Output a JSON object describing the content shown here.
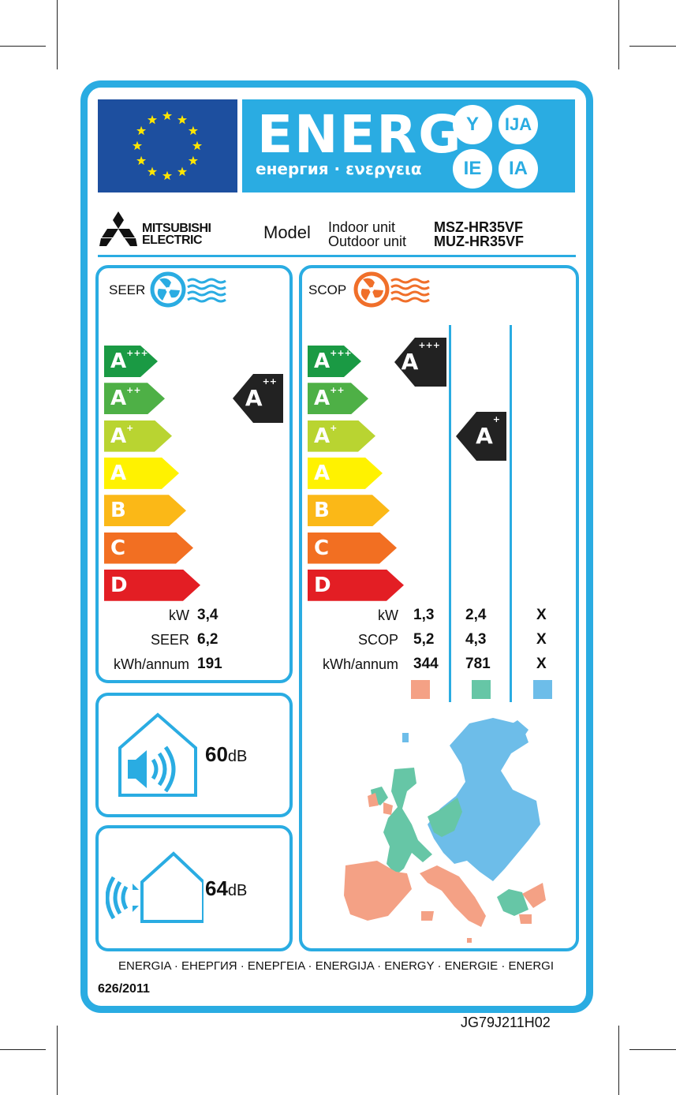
{
  "header": {
    "energy_word": "ENERG",
    "energy_sub": "енергия · ενεργεια",
    "lang_badges": [
      "Y",
      "IJA",
      "IE",
      "IA"
    ]
  },
  "brand": {
    "line1": "MITSUBISHI",
    "line2": "ELECTRIC"
  },
  "model": {
    "label": "Model",
    "indoor_label": "Indoor unit",
    "indoor_value": "MSZ-HR35VF",
    "outdoor_label": "Outdoor unit",
    "outdoor_value": "MUZ-HR35VF"
  },
  "classes": [
    {
      "letter": "A",
      "plus": "+++",
      "color": "#1a9a44"
    },
    {
      "letter": "A",
      "plus": "++",
      "color": "#4eb046"
    },
    {
      "letter": "A",
      "plus": "+",
      "color": "#b9d431"
    },
    {
      "letter": "A",
      "plus": "",
      "color": "#fff200"
    },
    {
      "letter": "B",
      "plus": "",
      "color": "#fbb817"
    },
    {
      "letter": "C",
      "plus": "",
      "color": "#f26f22"
    },
    {
      "letter": "D",
      "plus": "",
      "color": "#e31e24"
    }
  ],
  "seer": {
    "title": "SEER",
    "rating_letter": "A",
    "rating_plus": "++",
    "rows": [
      {
        "label": "kW",
        "value": "3,4"
      },
      {
        "label": "SEER",
        "value": "6,2"
      },
      {
        "label": "kWh/annum",
        "value": "191"
      }
    ]
  },
  "scop": {
    "title": "SCOP",
    "ratings": [
      {
        "letter": "A",
        "plus": "+++"
      },
      {
        "letter": "A",
        "plus": "+"
      }
    ],
    "rows": [
      {
        "label": "kW",
        "values": [
          "1,3",
          "2,4",
          "X"
        ]
      },
      {
        "label": "SCOP",
        "values": [
          "5,2",
          "4,3",
          "X"
        ]
      },
      {
        "label": "kWh/annum",
        "values": [
          "344",
          "781",
          "X"
        ]
      }
    ],
    "zone_colors": [
      "#f4a185",
      "#66c6a6",
      "#6dbde9"
    ]
  },
  "noise": {
    "indoor_value": "60",
    "outdoor_value": "64",
    "unit": "dB"
  },
  "footer": {
    "languages": "ENERGIA · ЕНЕРГИЯ · ΕΝΕΡΓΕΙΑ · ENERGIJA · ENERGY · ENERGIE · ENERGI",
    "regulation": "626/2011",
    "code": "JG79J211H02"
  }
}
